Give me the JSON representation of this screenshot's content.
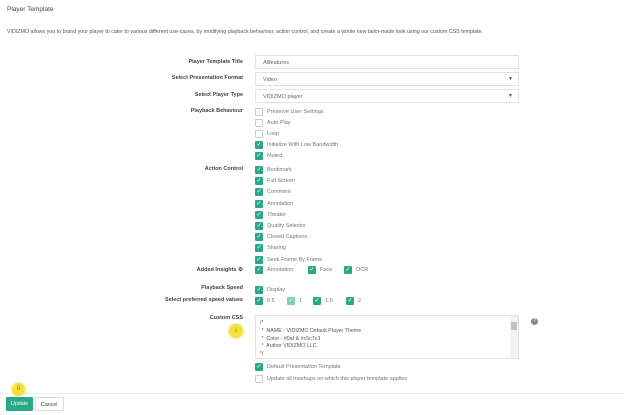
{
  "header": {
    "title": "Player Template",
    "description": "VIDIZMO allows you to brand your player to cater to various different use-cases, by modifying playback behaviour, action control, and create a whole new tailor-made look using our custom CSS template."
  },
  "form": {
    "template_title_label": "Player Template Title",
    "template_title_value": "Allfeatures",
    "format_label": "Select Presentation Format",
    "format_value": "Video",
    "player_type_label": "Select Player Type",
    "player_type_value": "VIDIZMO player",
    "playback_label": "Playback Behaviour",
    "playback": [
      {
        "label": "Preserve User Settings",
        "checked": false
      },
      {
        "label": "Auto Play",
        "checked": false
      },
      {
        "label": "Loop",
        "checked": false
      },
      {
        "label": "Initialize With Low Bandwidth",
        "checked": true
      },
      {
        "label": "Muted",
        "checked": true
      }
    ],
    "action_label": "Action Control",
    "actions": [
      {
        "label": "Bookmark",
        "checked": true
      },
      {
        "label": "Full Screen",
        "checked": true
      },
      {
        "label": "Comment",
        "checked": true
      },
      {
        "label": "Annotation",
        "checked": true
      },
      {
        "label": "Theater",
        "checked": true
      },
      {
        "label": "Quality Selector",
        "checked": true
      },
      {
        "label": "Closed Captions",
        "checked": true
      },
      {
        "label": "Sharing",
        "checked": true
      },
      {
        "label": "Seek Frame By Frame",
        "checked": true
      }
    ],
    "insights_label": "Added Insights",
    "insights": [
      {
        "label": "Annotation",
        "checked": true
      },
      {
        "label": "Face",
        "checked": true
      },
      {
        "label": "OCR",
        "checked": true
      }
    ],
    "speed_label": "Playback Speed",
    "speed_display": "Display",
    "speed_values_label": "Select preferred speed values",
    "speeds": [
      {
        "label": "0.5",
        "checked": true
      },
      {
        "label": "1",
        "checked": true,
        "disabled": true
      },
      {
        "label": "1.5",
        "checked": true
      },
      {
        "label": "2",
        "checked": true
      }
    ],
    "css_label": "Custom CSS",
    "css_value": "/*\n *  NAME - VIDIZMO Default Player Theme\n *  Color - #0af & #c5c7c3\n *  Author VIDIZMO LLC\n*/\n .vjs-vidizmo-skin .vjs-control-bar {",
    "default_template": "Default Presentation Template",
    "update_mashups": "Update all mashups on which this player template applies"
  },
  "markers": {
    "css": "i",
    "buttons": "ii"
  },
  "buttons": {
    "update": "Update",
    "cancel": "Cancel"
  },
  "colors": {
    "accent": "#27a98a",
    "marker": "#f7e13a"
  }
}
